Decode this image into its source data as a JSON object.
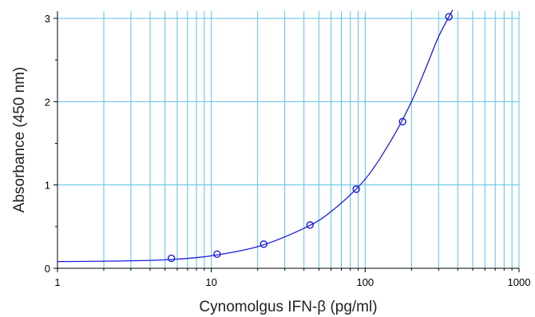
{
  "chart_data": {
    "type": "scatter",
    "xlabel": "Cynomolgus IFN-β (pg/ml)",
    "ylabel": "Absorbance (450 nm)",
    "x_scale": "log",
    "xlim": [
      1,
      1000
    ],
    "ylim": [
      0,
      3.1
    ],
    "x_tick_labels": [
      "1",
      "10",
      "100",
      "1000"
    ],
    "y_tick_labels": [
      "0",
      "1",
      "2",
      "3"
    ],
    "grid": true,
    "points": {
      "x": [
        5.5,
        10.9,
        21.9,
        43.8,
        87.5,
        175,
        350
      ],
      "y": [
        0.12,
        0.17,
        0.29,
        0.52,
        0.95,
        1.76,
        3.02
      ]
    },
    "fit_curve": {
      "x": [
        1,
        2,
        4,
        6,
        10,
        20,
        40,
        60,
        100,
        150,
        200,
        250,
        300,
        370
      ],
      "y": [
        0.08,
        0.085,
        0.095,
        0.11,
        0.15,
        0.26,
        0.48,
        0.68,
        1.07,
        1.56,
        2.0,
        2.42,
        2.78,
        3.1
      ]
    },
    "colors": {
      "grid": "#5bc0e8",
      "curve": "#1c1ce0",
      "marker": "#1c1ce0",
      "axis": "#000000"
    }
  }
}
